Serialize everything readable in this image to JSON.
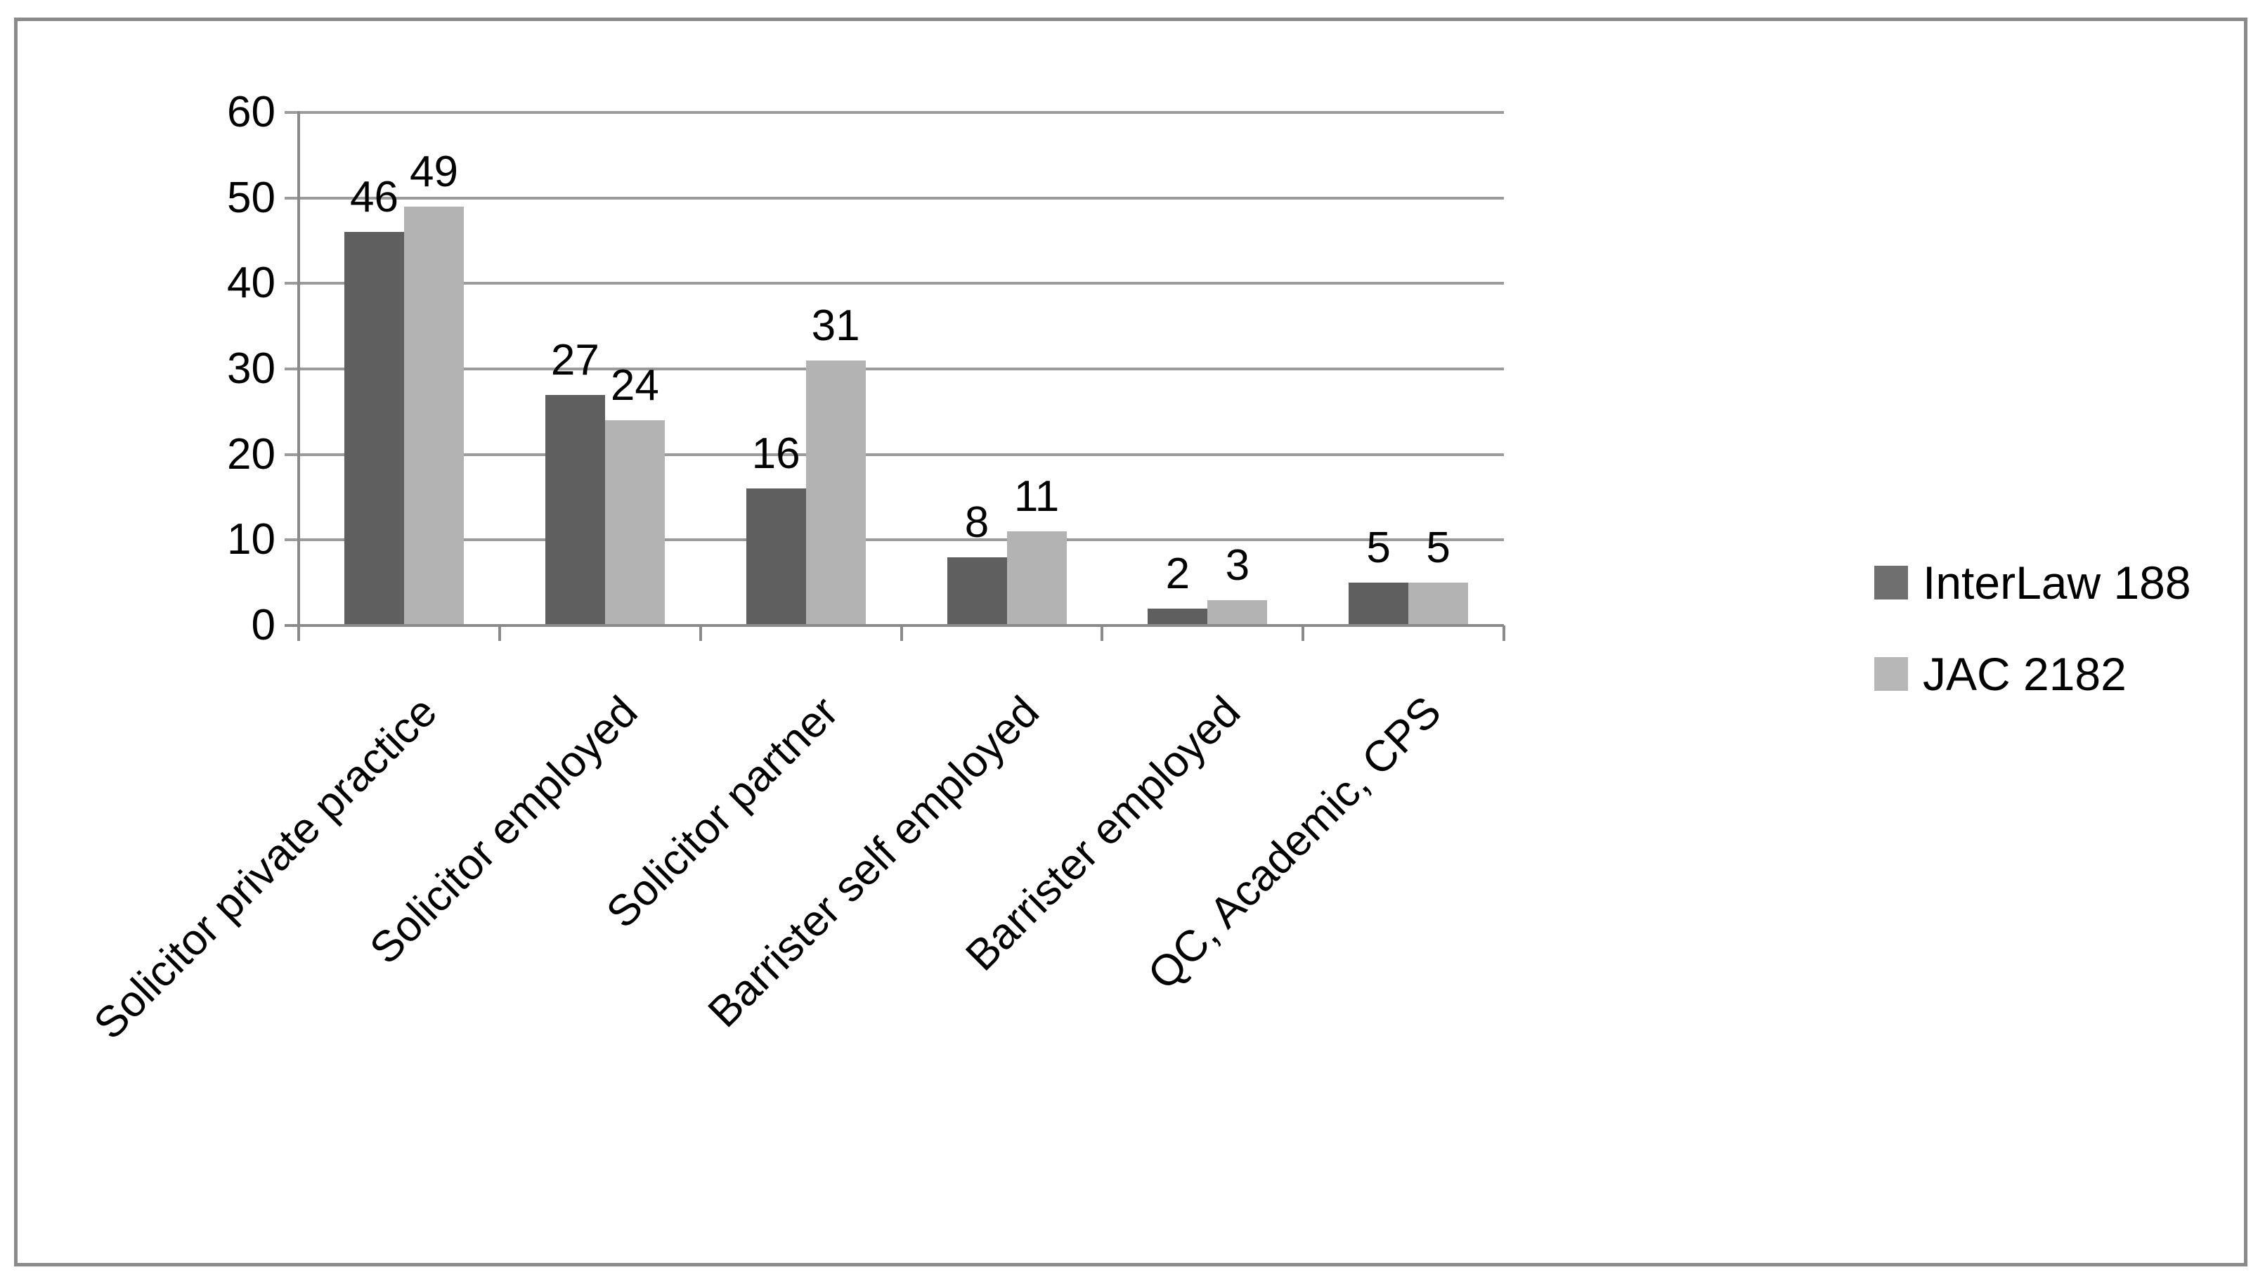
{
  "figure": {
    "background": "#ffffff",
    "border_color": "#8a8a8a"
  },
  "chart_data": {
    "type": "bar",
    "title": "",
    "xlabel": "",
    "ylabel": "",
    "categories": [
      "Solicitor private practice",
      "Solicitor employed",
      "Solicitor partner",
      "Barrister self employed",
      "Barrister employed",
      "QC, Academic, CPS"
    ],
    "series": [
      {
        "name": "InterLaw 188",
        "color": "#5f5f5f",
        "values": [
          46,
          27,
          16,
          8,
          2,
          5
        ]
      },
      {
        "name": "JAC 2182",
        "color": "#b3b3b3",
        "values": [
          49,
          24,
          31,
          11,
          3,
          5
        ]
      }
    ],
    "legend_swatch_colors": [
      "#6f6f6f",
      "#b7b7b7"
    ],
    "ylim": [
      0,
      60
    ],
    "yticks": [
      0,
      10,
      20,
      30,
      40,
      50,
      60
    ],
    "grid": "horizontal",
    "gridline_color": "#9b9b9b",
    "axis_color": "#8a8a8a",
    "data_labels": true,
    "data_label_color": "#000000",
    "legend_position": "right"
  }
}
